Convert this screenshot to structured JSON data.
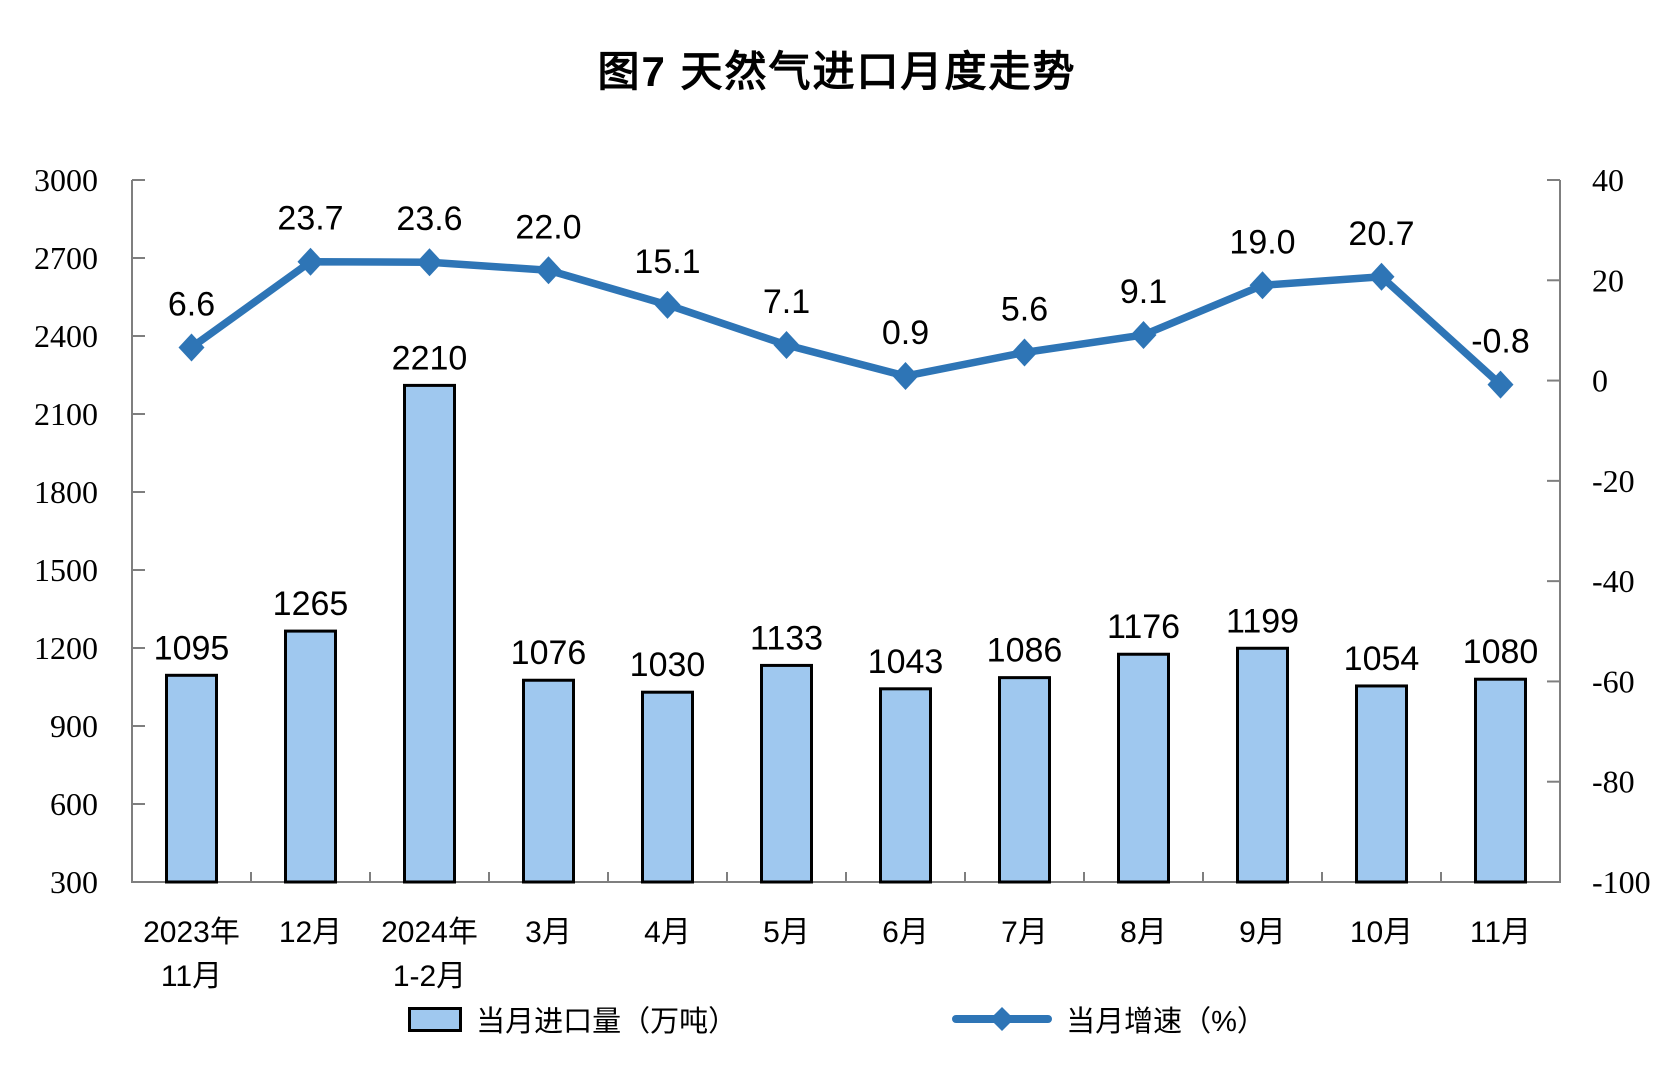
{
  "title": "图7 天然气进口月度走势",
  "legend": {
    "bars_label": "当月进口量（万吨）",
    "line_label": "当月增速（%）"
  },
  "colors": {
    "bar_fill": "#9FC8EF",
    "bar_border": "#000000",
    "line": "#2E75B6",
    "axis": "#7F7F7F",
    "text": "#000000"
  },
  "chart_data": {
    "type": "bar",
    "subtype": "bar+line combo, dual y-axes",
    "title": "图7 天然气进口月度走势",
    "categories": [
      "2023年\n11月",
      "12月",
      "2024年\n1-2月",
      "3月",
      "4月",
      "5月",
      "6月",
      "7月",
      "8月",
      "9月",
      "10月",
      "11月"
    ],
    "series": [
      {
        "name": "当月进口量（万吨）",
        "type": "bar",
        "axis": "left",
        "values": [
          1095,
          1265,
          2210,
          1076,
          1030,
          1133,
          1043,
          1086,
          1176,
          1199,
          1054,
          1080
        ]
      },
      {
        "name": "当月增速（%）",
        "type": "line",
        "axis": "right",
        "marker": "diamond",
        "values": [
          6.6,
          23.7,
          23.6,
          22.0,
          15.1,
          7.1,
          0.9,
          5.6,
          9.1,
          19.0,
          20.7,
          -0.8
        ]
      }
    ],
    "left_axis": {
      "min": 300,
      "max": 3000,
      "step": 300,
      "ticks": [
        300,
        600,
        900,
        1200,
        1500,
        1800,
        2100,
        2400,
        2700,
        3000
      ]
    },
    "right_axis": {
      "min": -100,
      "max": 40,
      "step": 20,
      "ticks": [
        -100,
        -80,
        -60,
        -40,
        -20,
        0,
        20,
        40
      ]
    },
    "grid": false,
    "legend_position": "bottom",
    "data_labels": true
  }
}
